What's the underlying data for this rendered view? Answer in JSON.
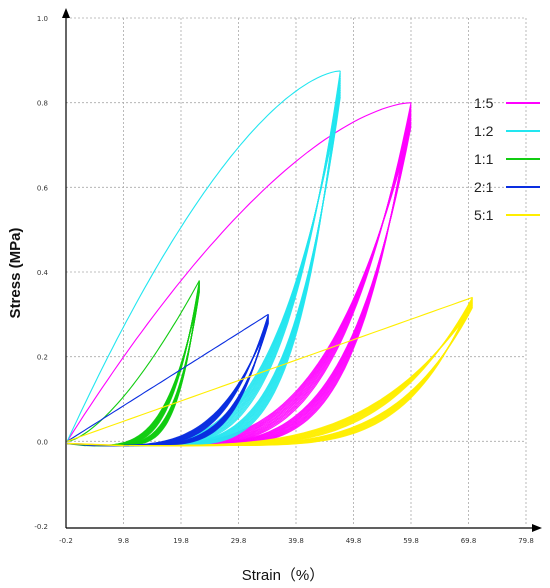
{
  "chart_data": {
    "type": "line",
    "xlabel": "Strain（%）",
    "ylabel": "Stress (MPa)",
    "x_ticks": [
      "-0.2",
      "9.8",
      "19.8",
      "29.8",
      "39.8",
      "49.8",
      "59.8",
      "69.8",
      "79.8"
    ],
    "y_ticks": [
      "1.0",
      "0.8",
      "0.6",
      "0.4",
      "0.2",
      "0.0",
      "-0.2"
    ],
    "xlim": [
      -0.2,
      79.8
    ],
    "ylim": [
      -0.2,
      1.0
    ],
    "grid": true,
    "legend_position": "right",
    "series": [
      {
        "name": "1:5",
        "color": "#ff00ff",
        "max_strain": 59.8,
        "max_stress": 0.8,
        "first_loading_curve": "concave",
        "cycles": 12
      },
      {
        "name": "1:2",
        "color": "#22e6f0",
        "max_strain": 47.5,
        "max_stress": 0.875,
        "first_loading_curve": "concave",
        "cycles": 12
      },
      {
        "name": "1:1",
        "color": "#11cc11",
        "max_strain": 23.0,
        "max_stress": 0.38,
        "first_loading_curve": "convex",
        "cycles": 12
      },
      {
        "name": "2:1",
        "color": "#0a2ee0",
        "max_strain": 35.0,
        "max_stress": 0.3,
        "first_loading_curve": "linear",
        "cycles": 12
      },
      {
        "name": "5:1",
        "color": "#ffee00",
        "max_strain": 70.5,
        "max_stress": 0.34,
        "first_loading_curve": "linear",
        "cycles": 12
      }
    ]
  }
}
